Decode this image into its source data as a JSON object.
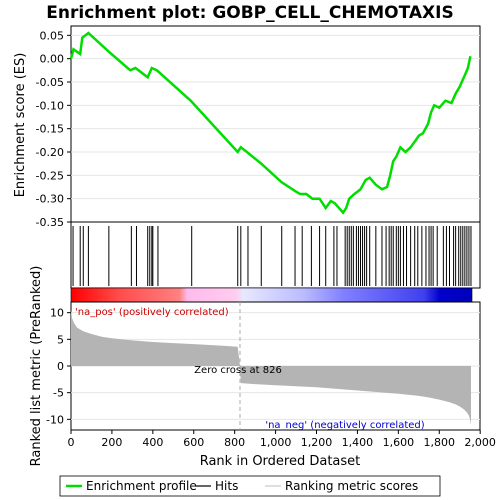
{
  "chart_data": {
    "type": "line",
    "title": "Enrichment plot: GOBP_CELL_CHEMOTAXIS",
    "xlabel": "Rank in Ordered Dataset",
    "ylabel_top": "Enrichment score (ES)",
    "ylabel_bottom": "Ranked list metric (PreRanked)",
    "xlim": [
      0,
      1960
    ],
    "x_ticks": [
      0,
      200,
      400,
      600,
      800,
      1000,
      1200,
      1400,
      1600,
      1800,
      2000
    ],
    "x_tick_labels": [
      "0",
      "200",
      "400",
      "600",
      "800",
      "1,000",
      "1,200",
      "1,400",
      "1,600",
      "1,800",
      "2,000"
    ],
    "es_ylim": [
      -0.35,
      0.07
    ],
    "es_ticks": [
      0.05,
      0.0,
      -0.05,
      -0.1,
      -0.15,
      -0.2,
      -0.25,
      -0.3,
      -0.35
    ],
    "es_tick_labels": [
      "0.05",
      "0.00",
      "-0.05",
      "-0.10",
      "-0.15",
      "-0.20",
      "-0.25",
      "-0.30",
      "-0.35"
    ],
    "metric_ylim": [
      -12,
      12
    ],
    "metric_ticks": [
      10,
      5,
      0,
      -5,
      -10
    ],
    "metric_tick_labels": [
      "10",
      "5",
      "0",
      "-5",
      "-10"
    ],
    "series": [
      {
        "name": "Enrichment profile",
        "color": "#00dd00",
        "x": [
          0,
          12,
          45,
          55,
          85,
          185,
          290,
          315,
          375,
          395,
          420,
          585,
          815,
          830,
          860,
          930,
          1030,
          1100,
          1120,
          1150,
          1180,
          1215,
          1245,
          1270,
          1290,
          1330,
          1345,
          1360,
          1385,
          1400,
          1415,
          1440,
          1460,
          1490,
          1520,
          1545,
          1560,
          1575,
          1590,
          1610,
          1635,
          1660,
          1685,
          1700,
          1720,
          1745,
          1760,
          1775,
          1800,
          1830,
          1860,
          1880,
          1900,
          1915,
          1930,
          1940,
          1952
        ],
        "y": [
          0.0,
          0.02,
          0.01,
          0.045,
          0.055,
          0.015,
          -0.025,
          -0.02,
          -0.04,
          -0.02,
          -0.025,
          -0.09,
          -0.2,
          -0.19,
          -0.2,
          -0.225,
          -0.265,
          -0.285,
          -0.29,
          -0.29,
          -0.3,
          -0.3,
          -0.32,
          -0.305,
          -0.31,
          -0.33,
          -0.32,
          -0.3,
          -0.29,
          -0.285,
          -0.28,
          -0.26,
          -0.255,
          -0.27,
          -0.28,
          -0.275,
          -0.25,
          -0.22,
          -0.21,
          -0.19,
          -0.2,
          -0.19,
          -0.175,
          -0.165,
          -0.16,
          -0.14,
          -0.115,
          -0.1,
          -0.105,
          -0.09,
          -0.095,
          -0.075,
          -0.06,
          -0.045,
          -0.03,
          -0.02,
          0.005
        ]
      }
    ],
    "hits": [
      10,
      45,
      60,
      85,
      185,
      295,
      320,
      375,
      385,
      395,
      400,
      425,
      590,
      815,
      830,
      865,
      930,
      1030,
      1095,
      1130,
      1175,
      1215,
      1245,
      1285,
      1300,
      1340,
      1350,
      1360,
      1370,
      1380,
      1395,
      1405,
      1415,
      1425,
      1435,
      1445,
      1460,
      1490,
      1520,
      1540,
      1555,
      1565,
      1575,
      1590,
      1600,
      1610,
      1625,
      1640,
      1660,
      1680,
      1695,
      1715,
      1735,
      1750,
      1760,
      1770,
      1790,
      1820,
      1835,
      1850,
      1870,
      1880,
      1895,
      1905,
      1915,
      1925,
      1935,
      1945,
      1955
    ],
    "metric_curve": {
      "x": [
        0,
        5,
        15,
        30,
        60,
        100,
        150,
        200,
        300,
        400,
        500,
        600,
        700,
        780,
        815,
        826,
        830,
        900,
        1000,
        1100,
        1200,
        1300,
        1400,
        1500,
        1600,
        1700,
        1750,
        1800,
        1850,
        1880,
        1900,
        1920,
        1935,
        1945,
        1950,
        1955
      ],
      "y": [
        10.5,
        9.0,
        8.0,
        7.2,
        6.5,
        6.0,
        5.5,
        5.2,
        4.8,
        4.5,
        4.3,
        4.1,
        3.9,
        3.7,
        3.6,
        0,
        -3.2,
        -3.4,
        -3.6,
        -3.8,
        -4.0,
        -4.3,
        -4.6,
        -4.9,
        -5.2,
        -5.6,
        -5.9,
        -6.3,
        -6.8,
        -7.2,
        -7.6,
        -8.1,
        -8.7,
        -9.3,
        -10.0,
        -11.0
      ]
    },
    "zero_cross_label": "Zero cross at 826",
    "zero_cross_x": 826,
    "pos_label": "'na_pos' (positively correlated)",
    "neg_label": "'na_neg' (negatively correlated)",
    "pos_color": "#cc0000",
    "neg_color": "#0000cc",
    "legend": [
      {
        "label": "Enrichment profile",
        "kind": "line",
        "color": "#00dd00"
      },
      {
        "label": "Hits",
        "kind": "line",
        "color": "#000000"
      },
      {
        "label": "Ranking metric scores",
        "kind": "line",
        "color": "#c8c8c8"
      }
    ]
  }
}
